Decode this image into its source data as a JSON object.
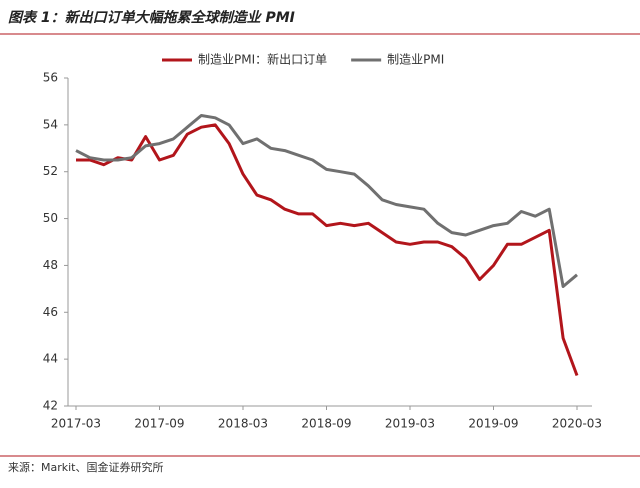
{
  "chart_data": {
    "type": "line",
    "title": "图表 1：新出口订单大幅拖累全球制造业 PMI",
    "source": "来源：Markit、国金证券研究所",
    "categories": [
      "2017-03",
      null,
      null,
      null,
      null,
      null,
      "2017-09",
      null,
      null,
      null,
      null,
      null,
      "2018-03",
      null,
      null,
      null,
      null,
      null,
      "2018-09",
      null,
      null,
      null,
      null,
      null,
      "2019-03",
      null,
      null,
      null,
      null,
      null,
      "2019-09",
      null,
      null,
      null,
      null,
      null,
      "2020-03"
    ],
    "series": [
      {
        "name": "制造业PMI：新出口订单",
        "color": "#b2151b",
        "values": [
          52.5,
          52.5,
          52.3,
          52.6,
          52.5,
          53.5,
          52.5,
          52.7,
          53.6,
          53.9,
          54.0,
          53.2,
          51.9,
          51.0,
          50.8,
          50.4,
          50.2,
          50.2,
          49.7,
          49.8,
          49.7,
          49.8,
          49.4,
          49.0,
          48.9,
          49.0,
          49.0,
          48.8,
          48.3,
          47.4,
          48.0,
          48.9,
          48.9,
          49.2,
          49.5,
          44.9,
          43.3
        ]
      },
      {
        "name": "制造业PMI",
        "color": "#707070",
        "values": [
          52.9,
          52.6,
          52.5,
          52.5,
          52.6,
          53.1,
          53.2,
          53.4,
          53.9,
          54.4,
          54.3,
          54.0,
          53.2,
          53.4,
          53.0,
          52.9,
          52.7,
          52.5,
          52.1,
          52.0,
          51.9,
          51.4,
          50.8,
          50.6,
          50.5,
          50.4,
          49.8,
          49.4,
          49.3,
          49.5,
          49.7,
          49.8,
          50.3,
          50.1,
          50.4,
          47.1,
          47.6
        ]
      }
    ],
    "ylim": [
      42,
      56
    ],
    "yticks": [
      42,
      44,
      46,
      48,
      50,
      52,
      54,
      56
    ],
    "grid": false,
    "legend": "top"
  }
}
